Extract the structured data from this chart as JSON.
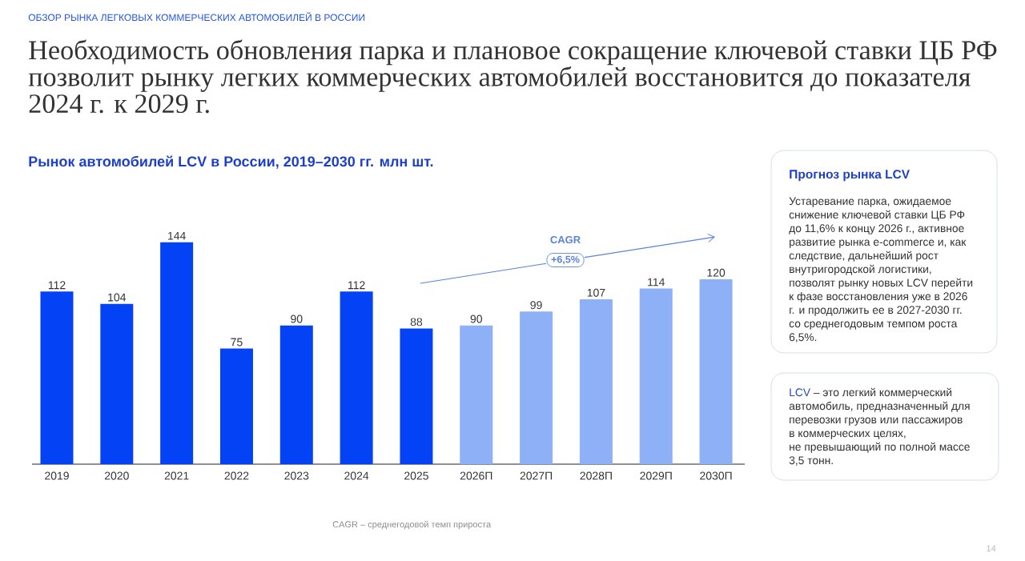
{
  "chart_data": [
    {
      "type": "bar",
      "title": "Необходимость обновления парка и плановое сокращение ключевой ставки ЦБ РФ позволит рынку легких коммерческих автомобилей восстановится до показателя 2024 г. к 2029 г.",
      "subtitle": "Рынок автомобилей LCV в России, 2019–2030 гг. млн шт.",
      "categories": [
        "2019",
        "2020",
        "2021",
        "2022",
        "2023",
        "2024",
        "2025",
        "2026П",
        "2027П",
        "2028П",
        "2029П",
        "2030П"
      ],
      "values": [
        112,
        104,
        144,
        75,
        90,
        112,
        88,
        90,
        99,
        107,
        114,
        120
      ],
      "colors": [
        "#0342f5",
        "#0342f5",
        "#0342f5",
        "#0342f5",
        "#0342f5",
        "#0342f5",
        "#0342f5",
        "#8db0f7",
        "#8db0f7",
        "#8db0f7",
        "#8db0f7",
        "#8db0f7"
      ],
      "data_labels": true,
      "tick_labels": "x",
      "annotations": [
        "ОБЗОР РЫНКА ЛЕГКОВЫХ КОММЕРЧЕСКИХ АВТОМОБИЛЕЙ В РОССИИ",
        "CAGR",
        "+6,5%",
        "CAGR – среднегодовой темп прироста",
        "14"
      ]
    },
    {
      "type": "other",
      "title": "Прогноз рынка LCV",
      "annotations": [
        "Устаревание парка, ожидаемое снижение ключевой ставки ЦБ РФ до 11,6% к концу 2026 г., активное развитие рынка e-commerce и, как следствие, дальнейший рост внутригородской логистики, позволят рынку новых LCV перейти к фазе восстановления уже в 2026 г. и продолжить ее в 2027-2030 гг. со среднегодовым темпом роста 6,5%."
      ]
    },
    {
      "type": "other",
      "title": "LCV",
      "annotations": [
        "– это легкий коммерческий",
        "автомобиль, предназначенный для",
        "перевозки грузов или пассажиров",
        "в коммерческих целях,",
        "не превышающий по полной массе",
        "3,5 тонн."
      ]
    }
  ]
}
